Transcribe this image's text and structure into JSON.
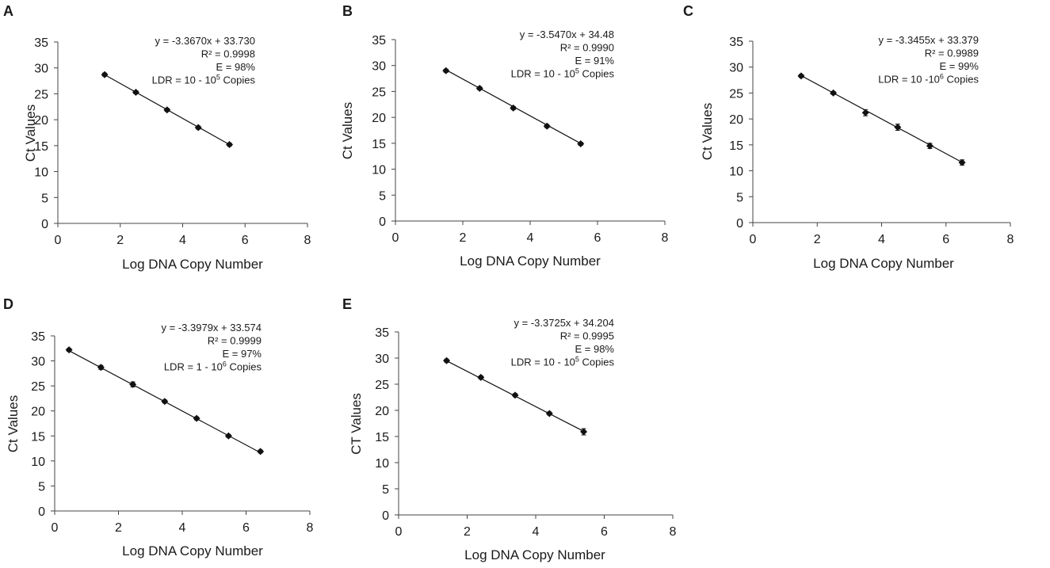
{
  "chart_data": [
    {
      "type": "scatter",
      "panel": "A",
      "title": "",
      "xlabel": "Log DNA Copy Number",
      "ylabel": "Ct Values",
      "xlim": [
        0,
        8
      ],
      "ylim": [
        0,
        35
      ],
      "xticks": [
        "0",
        "2",
        "4",
        "6",
        "8"
      ],
      "yticks": [
        "0",
        "5",
        "10",
        "15",
        "20",
        "25",
        "30",
        "35"
      ],
      "x": [
        1.5,
        2.5,
        3.5,
        4.5,
        5.5
      ],
      "y": [
        28.7,
        25.3,
        21.9,
        18.5,
        15.2
      ],
      "yerr": [
        0.3,
        0.3,
        0.3,
        0.3,
        0.3
      ],
      "fit": {
        "slope": -3.367,
        "intercept": 33.73
      },
      "annotation": {
        "equation": "y = -3.3670x + 33.730",
        "r2": "R² = 0.9998",
        "efficiency": "E = 98%",
        "ldr_prefix": "LDR = 10 - 10",
        "ldr_exp": "5",
        "ldr_suffix": " Copies"
      }
    },
    {
      "type": "scatter",
      "panel": "B",
      "title": "",
      "xlabel": "Log DNA Copy Number",
      "ylabel": "Ct Values",
      "xlim": [
        0,
        8
      ],
      "ylim": [
        0,
        35
      ],
      "xticks": [
        "0",
        "2",
        "4",
        "6",
        "8"
      ],
      "yticks": [
        "0",
        "5",
        "10",
        "15",
        "20",
        "25",
        "30",
        "35"
      ],
      "x": [
        1.5,
        2.5,
        3.5,
        4.5,
        5.5
      ],
      "y": [
        29.0,
        25.6,
        21.8,
        18.3,
        14.9
      ],
      "yerr": [
        0.3,
        0.3,
        0.3,
        0.3,
        0.3
      ],
      "fit": {
        "slope": -3.547,
        "intercept": 34.48
      },
      "annotation": {
        "equation": "y = -3.5470x + 34.48",
        "r2": "R² = 0.9990",
        "efficiency": "E = 91%",
        "ldr_prefix": "LDR = 10 - 10",
        "ldr_exp": "5",
        "ldr_suffix": " Copies"
      }
    },
    {
      "type": "scatter",
      "panel": "C",
      "title": "",
      "xlabel": "Log DNA Copy Number",
      "ylabel": "Ct Values",
      "xlim": [
        0,
        8
      ],
      "ylim": [
        0,
        35
      ],
      "xticks": [
        "0",
        "2",
        "4",
        "6",
        "8"
      ],
      "yticks": [
        "0",
        "5",
        "10",
        "15",
        "20",
        "25",
        "30",
        "35"
      ],
      "x": [
        1.5,
        2.5,
        3.5,
        4.5,
        5.5,
        6.5
      ],
      "y": [
        28.3,
        25.0,
        21.2,
        18.4,
        14.8,
        11.6
      ],
      "yerr": [
        0.3,
        0.3,
        0.6,
        0.6,
        0.5,
        0.5
      ],
      "fit": {
        "slope": -3.3455,
        "intercept": 33.379
      },
      "annotation": {
        "equation": "y = -3.3455x + 33.379",
        "r2": "R² = 0.9989",
        "efficiency": "E = 99%",
        "ldr_prefix": "LDR = 10 -10",
        "ldr_exp": "6",
        "ldr_suffix": " Copies"
      }
    },
    {
      "type": "scatter",
      "panel": "D",
      "title": "",
      "xlabel": "Log DNA Copy Number",
      "ylabel": "Ct Values",
      "xlim": [
        0,
        8
      ],
      "ylim": [
        0,
        35
      ],
      "xticks": [
        "0",
        "2",
        "4",
        "6",
        "8"
      ],
      "yticks": [
        "0",
        "5",
        "10",
        "15",
        "20",
        "25",
        "30",
        "35"
      ],
      "x": [
        0.45,
        1.45,
        2.45,
        3.45,
        4.45,
        5.45,
        6.45
      ],
      "y": [
        32.2,
        28.7,
        25.3,
        21.9,
        18.5,
        15.0,
        11.9
      ],
      "yerr": [
        0.3,
        0.4,
        0.5,
        0.3,
        0.3,
        0.3,
        0.3
      ],
      "fit": {
        "slope": -3.3979,
        "intercept": 33.574
      },
      "annotation": {
        "equation": "y = -3.3979x + 33.574",
        "r2": "R² = 0.9999",
        "efficiency": "E = 97%",
        "ldr_prefix": "LDR = 1 - 10",
        "ldr_exp": "6",
        "ldr_suffix": " Copies"
      }
    },
    {
      "type": "scatter",
      "panel": "E",
      "title": "",
      "xlabel": "Log DNA Copy Number",
      "ylabel": "CT Values",
      "xlim": [
        0,
        8
      ],
      "ylim": [
        0,
        35
      ],
      "xticks": [
        "0",
        "2",
        "4",
        "6",
        "8"
      ],
      "yticks": [
        "0",
        "5",
        "10",
        "15",
        "20",
        "25",
        "30",
        "35"
      ],
      "x": [
        1.4,
        2.4,
        3.4,
        4.4,
        5.4
      ],
      "y": [
        29.5,
        26.3,
        22.9,
        19.4,
        15.9
      ],
      "yerr": [
        0.3,
        0.3,
        0.3,
        0.3,
        0.6
      ],
      "fit": {
        "slope": -3.3725,
        "intercept": 34.204
      },
      "annotation": {
        "equation": "y = -3.3725x + 34.204",
        "r2": "R² = 0.9995",
        "efficiency": "E = 98%",
        "ldr_prefix": "LDR = 10 - 10",
        "ldr_exp": "5",
        "ldr_suffix": " Copies"
      }
    }
  ]
}
